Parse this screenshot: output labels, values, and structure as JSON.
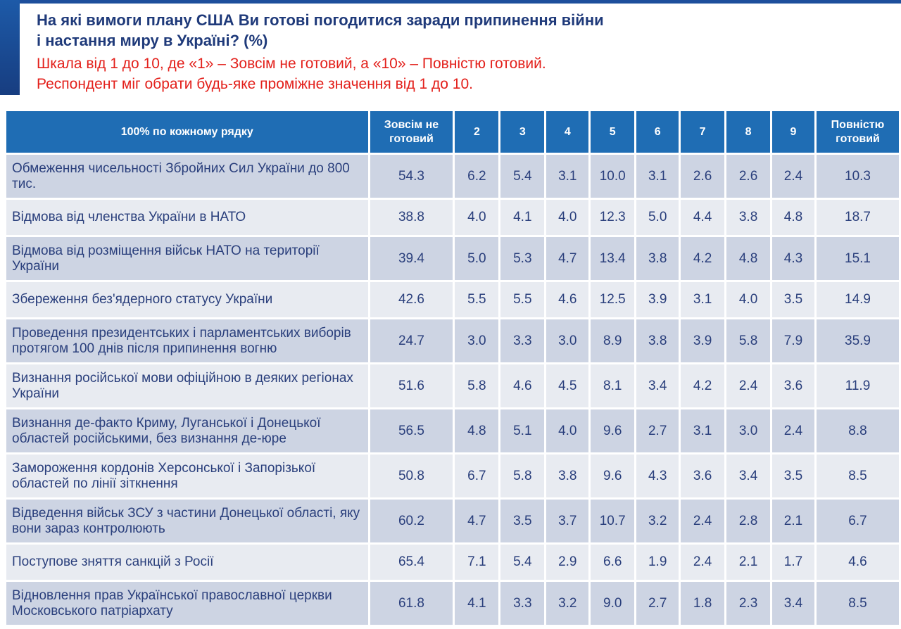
{
  "title_line1": "На які вимоги плану США Ви готові погодитися заради припинення війни",
  "title_line2": "і настання миру в Україні? (%)",
  "subtitle_line1": "Шкала від 1 до 10, де «1» – Зовсім не готовий, а «10» – Повністю готовий.",
  "subtitle_line2": "Респондент міг обрати будь-яке проміжне значення від 1 до 10.",
  "colors": {
    "header": "#1f6db4",
    "title": "#1f3a7a",
    "subtitle": "#e3201b"
  },
  "table": {
    "headers": [
      "100% по кожному рядку",
      "Зовсім не готовий",
      "2",
      "3",
      "4",
      "5",
      "6",
      "7",
      "8",
      "9",
      "Повністю готовий"
    ],
    "rows": [
      {
        "label": "Обмеження чисельності Збройних Сил України до 800 тис.",
        "values": [
          "54.3",
          "6.2",
          "5.4",
          "3.1",
          "10.0",
          "3.1",
          "2.6",
          "2.6",
          "2.4",
          "10.3"
        ]
      },
      {
        "label": "Відмова від членства України в НАТО",
        "values": [
          "38.8",
          "4.0",
          "4.1",
          "4.0",
          "12.3",
          "5.0",
          "4.4",
          "3.8",
          "4.8",
          "18.7"
        ]
      },
      {
        "label": "Відмова від розміщення військ НАТО на території України",
        "values": [
          "39.4",
          "5.0",
          "5.3",
          "4.7",
          "13.4",
          "3.8",
          "4.2",
          "4.8",
          "4.3",
          "15.1"
        ]
      },
      {
        "label": "Збереження без'ядерного статусу України",
        "values": [
          "42.6",
          "5.5",
          "5.5",
          "4.6",
          "12.5",
          "3.9",
          "3.1",
          "4.0",
          "3.5",
          "14.9"
        ]
      },
      {
        "label": "Проведення президентських і парламентських виборів протягом 100 днів після припинення вогню",
        "values": [
          "24.7",
          "3.0",
          "3.3",
          "3.0",
          "8.9",
          "3.8",
          "3.9",
          "5.8",
          "7.9",
          "35.9"
        ]
      },
      {
        "label": "Визнання російської мови офіційною в деяких регіонах України",
        "values": [
          "51.6",
          "5.8",
          "4.6",
          "4.5",
          "8.1",
          "3.4",
          "4.2",
          "2.4",
          "3.6",
          "11.9"
        ]
      },
      {
        "label": "Визнання де-факто Криму, Луганської і Донецької областей російськими, без визнання де-юре",
        "values": [
          "56.5",
          "4.8",
          "5.1",
          "4.0",
          "9.6",
          "2.7",
          "3.1",
          "3.0",
          "2.4",
          "8.8"
        ]
      },
      {
        "label": "Замороження кордонів Херсонської і Запорізької областей по лінії зіткнення",
        "values": [
          "50.8",
          "6.7",
          "5.8",
          "3.8",
          "9.6",
          "4.3",
          "3.6",
          "3.4",
          "3.5",
          "8.5"
        ]
      },
      {
        "label": "Відведення військ ЗСУ з частини Донецької області, яку вони зараз контролюють",
        "values": [
          "60.2",
          "4.7",
          "3.5",
          "3.7",
          "10.7",
          "3.2",
          "2.4",
          "2.8",
          "2.1",
          "6.7"
        ]
      },
      {
        "label": "Поступове зняття санкцій з Росії",
        "values": [
          "65.4",
          "7.1",
          "5.4",
          "2.9",
          "6.6",
          "1.9",
          "2.4",
          "2.1",
          "1.7",
          "4.6"
        ]
      },
      {
        "label": "Відновлення прав Української православної церкви Московського патріархату",
        "values": [
          "61.8",
          "4.1",
          "3.3",
          "3.2",
          "9.0",
          "2.7",
          "1.8",
          "2.3",
          "3.4",
          "8.5"
        ]
      }
    ]
  }
}
